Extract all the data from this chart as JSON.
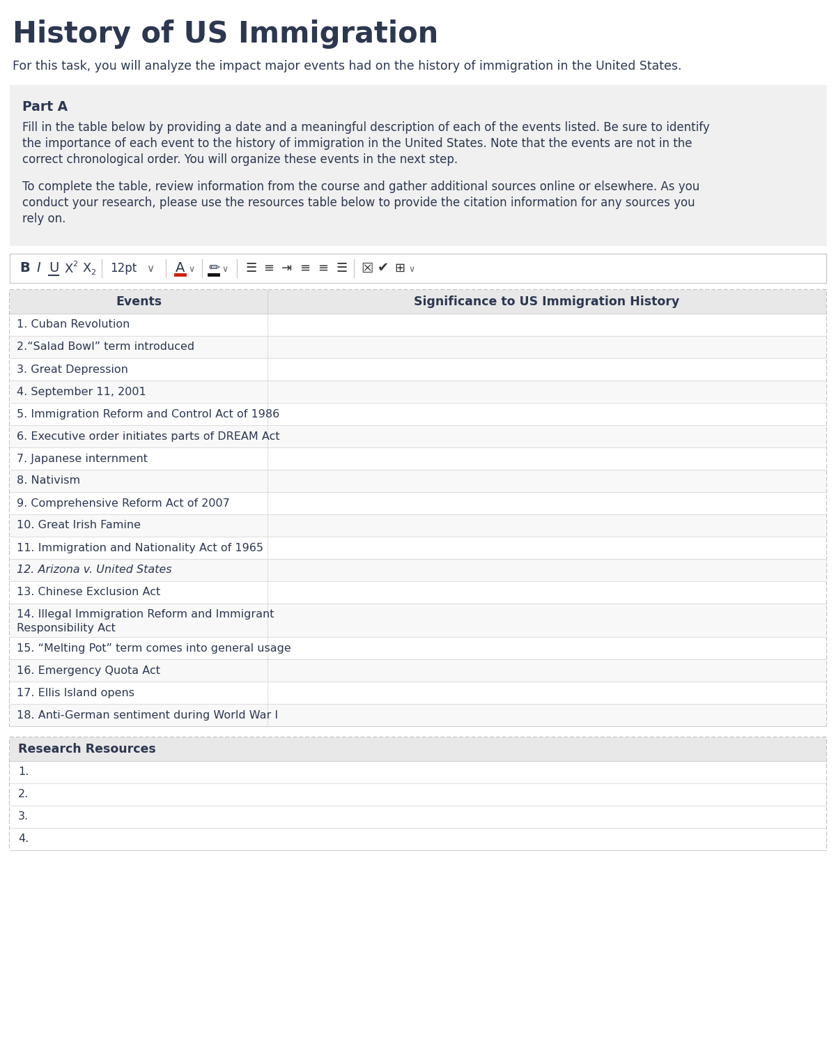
{
  "title": "History of US Immigration",
  "subtitle": "For this task, you will analyze the impact major events had on the history of immigration in the United States.",
  "section_title": "Part A",
  "section_body_1": "Fill in the table below by providing a date and a meaningful description of each of the events listed. Be sure to identify\nthe importance of each event to the history of immigration in the United States. Note that the events are not in the\ncorrect chronological order. You will organize these events in the next step.",
  "section_body_2": "To complete the table, review information from the course and gather additional sources online or elsewhere. As you\nconduct your research, please use the resources table below to provide the citation information for any sources you\nrely on.",
  "table_col1_header": "Events",
  "table_col2_header": "Significance to US Immigration History",
  "events": [
    "1. Cuban Revolution",
    "2.“Salad Bowl” term introduced",
    "3. Great Depression",
    "4. September 11, 2001",
    "5. Immigration Reform and Control Act of 1986",
    "6. Executive order initiates parts of DREAM Act",
    "7. Japanese internment",
    "8. Nativism",
    "9. Comprehensive Reform Act of 2007",
    "10. Great Irish Famine",
    "11. Immigration and Nationality Act of 1965",
    "12. Arizona v. United States",
    "13. Chinese Exclusion Act",
    "14. Illegal Immigration Reform and Immigrant\nResponsibility Act",
    "15. “Melting Pot” term comes into general usage",
    "16. Emergency Quota Act",
    "17. Ellis Island opens",
    "18. Anti-German sentiment during World War I"
  ],
  "italic_row": 11,
  "research_resources_title": "Research Resources",
  "research_resources": [
    "1.",
    "2.",
    "3.",
    "4."
  ],
  "bg_color": "#ffffff",
  "page_bg": "#f5f5f5",
  "section_bg": "#f0f0f0",
  "table_header_bg": "#e8e8e8",
  "table_row_bg1": "#ffffff",
  "table_row_bg2": "#f8f8f8",
  "table_border_color": "#d0d0d0",
  "dashed_border_color": "#b0b0b0",
  "title_color": "#2c3750",
  "text_color": "#2c3750",
  "toolbar_border": "#cccccc",
  "toolbar_bg": "#ffffff",
  "separator_color": "#cccccc"
}
